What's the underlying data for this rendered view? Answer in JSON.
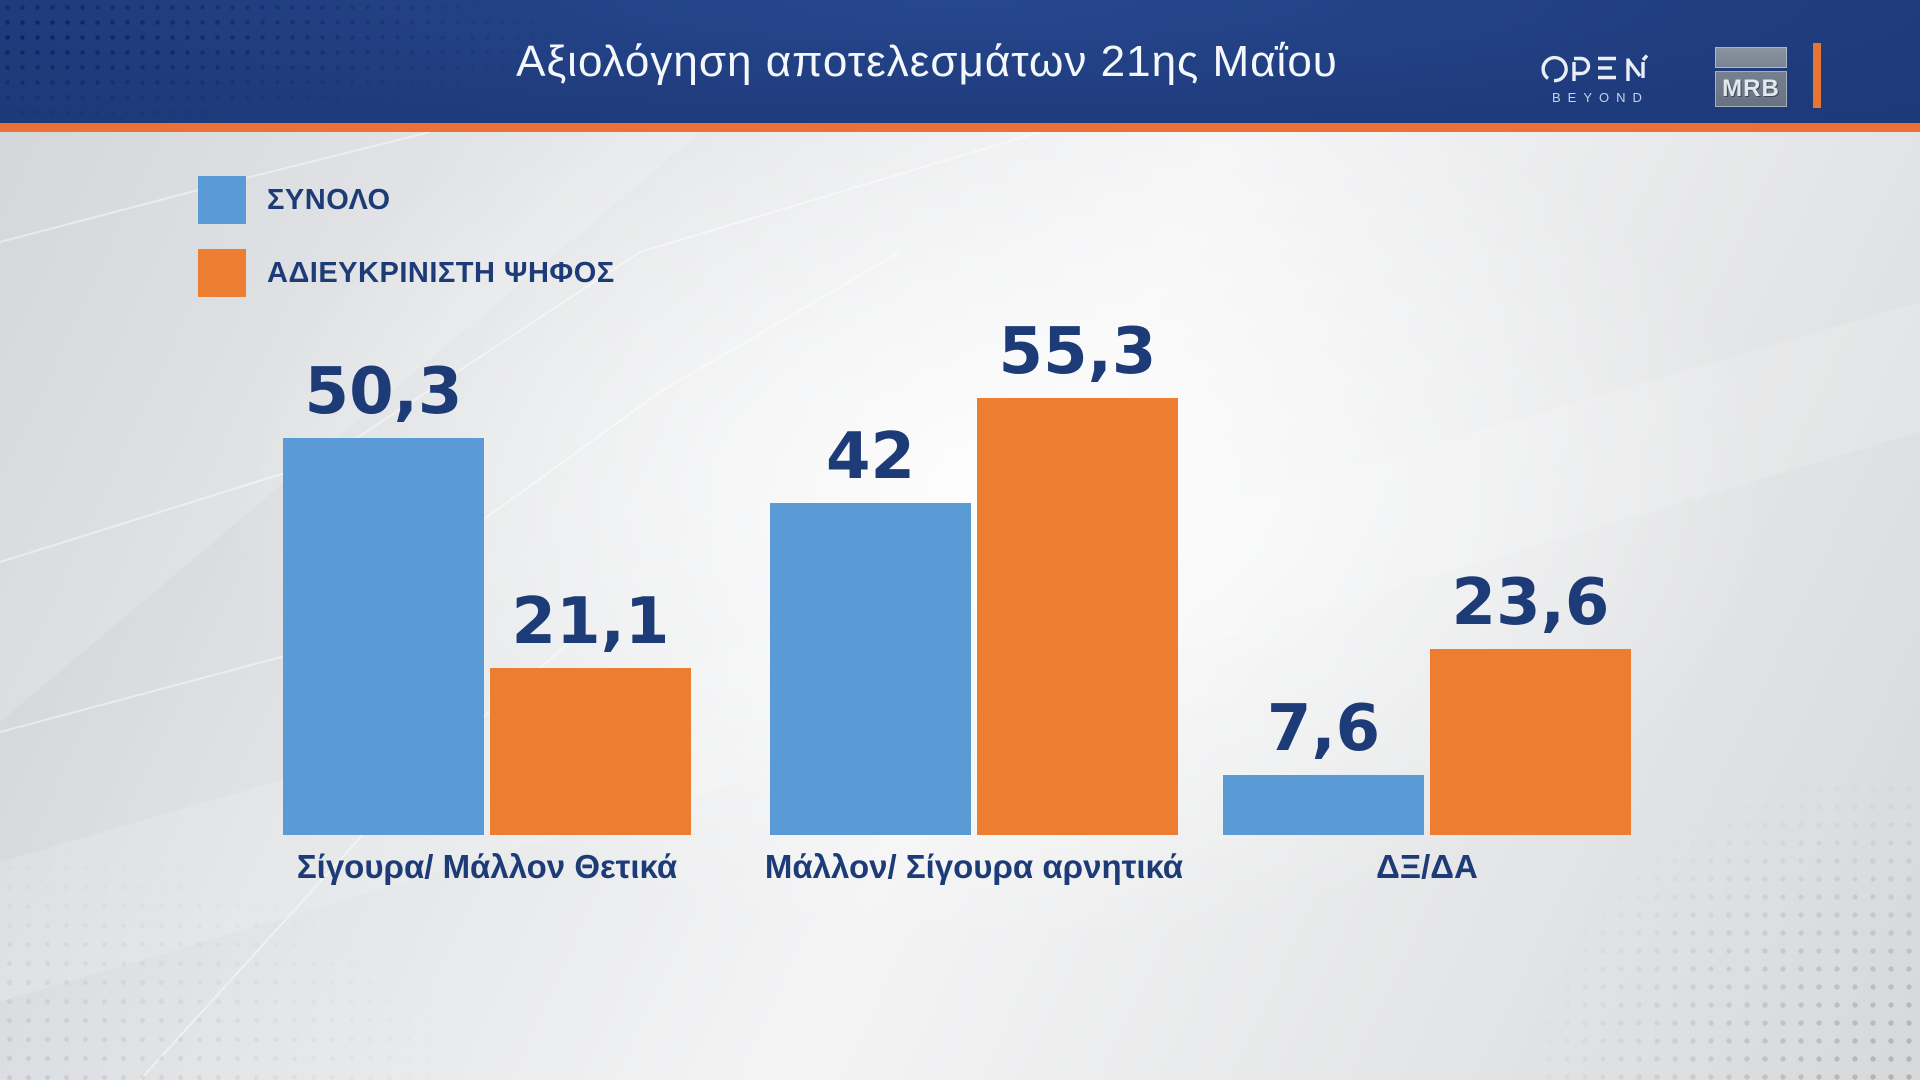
{
  "header": {
    "title": "Αξιολόγηση αποτελεσμάτων 21ης Μαΐου",
    "open_logo": {
      "name": "OPEN",
      "subtext": "BEYOND"
    },
    "mrb_logo": {
      "text": "MRB"
    }
  },
  "colors": {
    "header_bg": "#203e80",
    "header_accent_orange": "#ec7138",
    "series_blue": "#5b9bd5",
    "series_orange": "#ed7d31",
    "text_navy": "#1d3b76"
  },
  "chart_data": {
    "type": "bar",
    "title": "Αξιολόγηση αποτελεσμάτων 21ης Μαΐου",
    "categories": [
      "Σίγουρα/ Μάλλον Θετικά",
      "Μάλλον/ Σίγουρα αρνητικά",
      "ΔΞ/ΔΑ"
    ],
    "series": [
      {
        "name": "ΣΥΝΟΛΟ",
        "color": "#5b9bd5",
        "values": [
          50.3,
          42,
          7.6
        ],
        "value_labels": [
          "50,3",
          "42",
          "7,6"
        ]
      },
      {
        "name": "ΑΔΙΕΥΚΡΙΝΙΣΤΗ ΨΗΦΟΣ",
        "color": "#ed7d31",
        "values": [
          21.1,
          55.3,
          23.6
        ],
        "value_labels": [
          "21,1",
          "55,3",
          "23,6"
        ]
      }
    ],
    "xlabel": "",
    "ylabel": "",
    "ylim": [
      0,
      60
    ],
    "grid": false,
    "legend_position": "top-left",
    "value_label_format": "comma-decimal"
  }
}
